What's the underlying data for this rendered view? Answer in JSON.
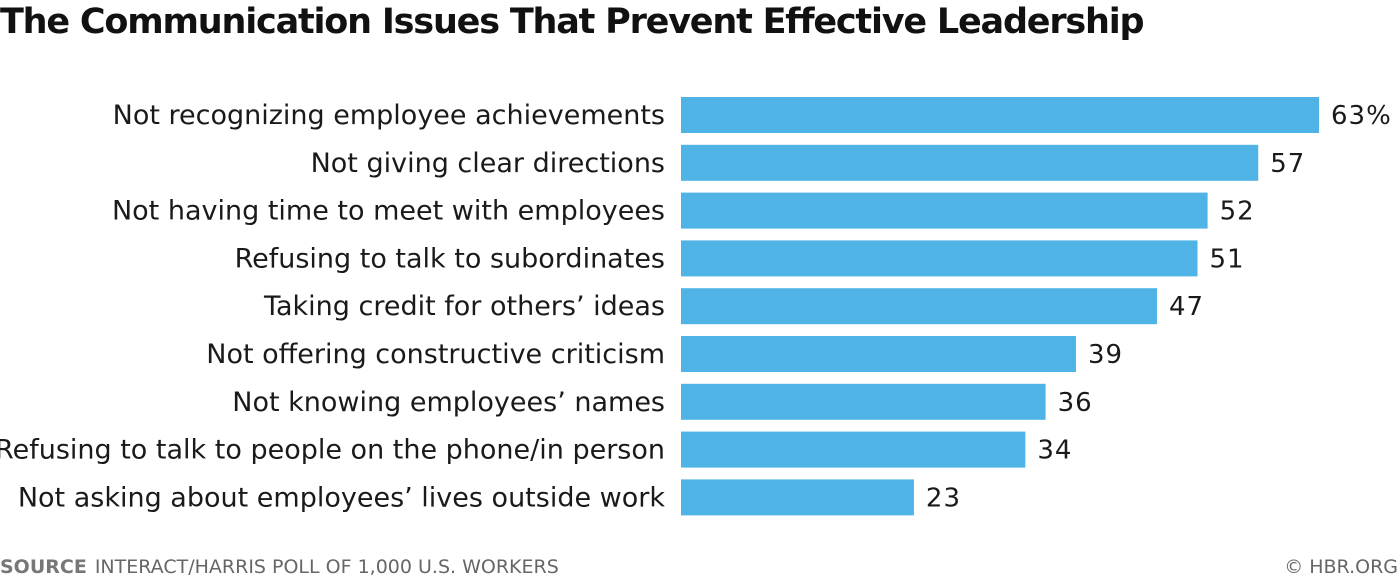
{
  "chart_data": {
    "type": "bar",
    "orientation": "horizontal",
    "title": "The Communication Issues That Prevent Effective Leadership",
    "categories": [
      "Not recognizing employee achievements",
      "Not giving clear directions",
      "Not having time to meet with employees",
      "Refusing to talk to subordinates",
      "Taking credit for others’ ideas",
      "Not offering constructive criticism",
      "Not knowing employees’ names",
      "Refusing to talk to people on the phone/in person",
      "Not asking about employees’ lives outside work"
    ],
    "values": [
      63,
      57,
      52,
      51,
      47,
      39,
      36,
      34,
      23
    ],
    "value_labels": [
      "63%",
      "57",
      "52",
      "51",
      "47",
      "39",
      "36",
      "34",
      "23"
    ],
    "unit": "%",
    "xlim": [
      0,
      63
    ],
    "grid": false,
    "legend": "none",
    "bar_color": "#4fb3e6"
  },
  "footer": {
    "source_label": "SOURCE",
    "source_text": "INTERACT/HARRIS POLL OF 1,000 U.S. WORKERS",
    "credit": "© HBR.ORG"
  }
}
